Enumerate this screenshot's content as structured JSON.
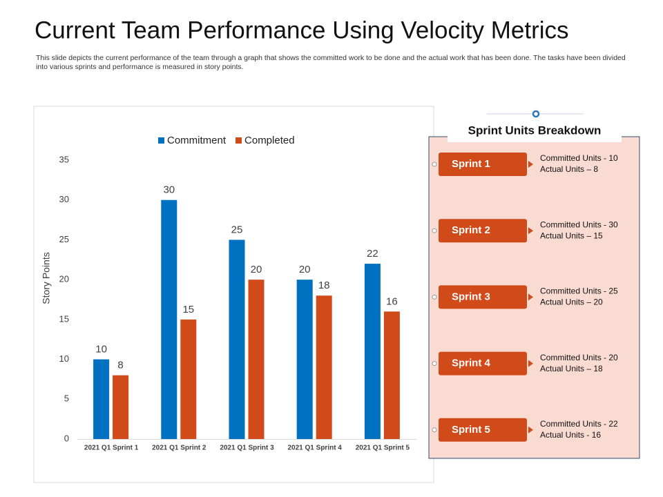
{
  "chart_data": {
    "type": "bar",
    "title": "Current Team Performance Using Velocity Metrics",
    "subtitle": "This slide depicts the current performance of the team through a graph that shows the committed work to be done and the actual work that has been done. The tasks have been divided into various sprints and performance is measured in story points.",
    "y_label": "Story Points",
    "categories": [
      "2021 Q1 Sprint 1",
      "2021 Q1 Sprint 2",
      "2021 Q1 Sprint 3",
      "2021 Q1 Sprint 4",
      "2021 Q1 Sprint 5"
    ],
    "series": [
      {
        "name": "Commitment",
        "color": "#0070c0",
        "values": [
          10,
          30,
          25,
          20,
          22
        ]
      },
      {
        "name": "Completed",
        "color": "#d04a1a",
        "values": [
          8,
          15,
          20,
          18,
          16
        ]
      }
    ],
    "ylim": [
      0,
      35
    ],
    "yticks": [
      0,
      5,
      10,
      15,
      20,
      25,
      30,
      35
    ],
    "grid": false,
    "legend": "top"
  },
  "panel": {
    "title": "Sprint Units Breakdown",
    "items": [
      {
        "label": "Sprint 1",
        "lines": [
          "Committed Units - 10",
          "Actual Units – 8"
        ]
      },
      {
        "label": "Sprint 2",
        "lines": [
          "Committed Units - 30",
          "Actual Units – 15"
        ]
      },
      {
        "label": "Sprint 3",
        "lines": [
          "Committed Units - 25",
          "Actual Units – 20"
        ]
      },
      {
        "label": "Sprint 4",
        "lines": [
          "Committed Units - 20",
          "Actual Units – 18"
        ]
      },
      {
        "label": "Sprint 5",
        "lines": [
          "Committed Units - 22",
          "Actual Units - 16"
        ]
      }
    ]
  }
}
